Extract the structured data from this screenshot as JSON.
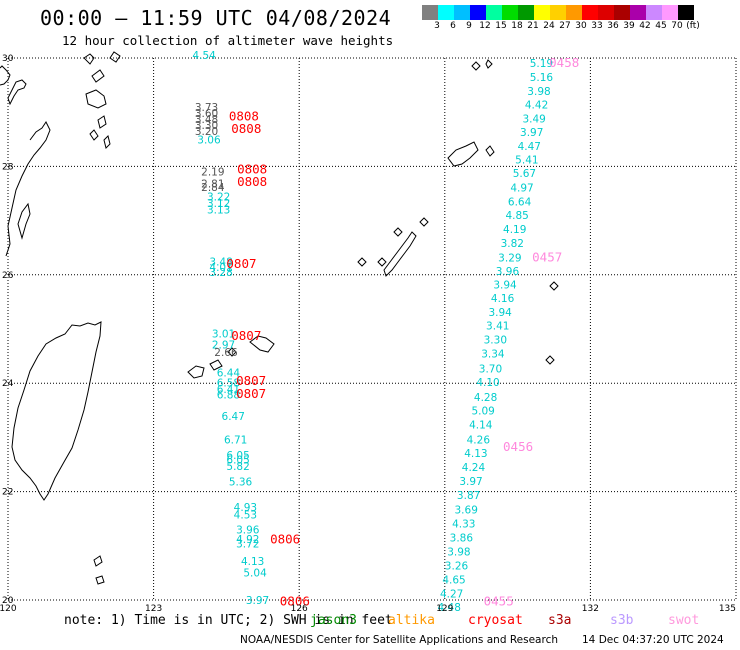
{
  "title": "00:00 — 11:59 UTC 04/08/2024",
  "subtitle": "12 hour collection of altimeter wave heights",
  "colorbar": {
    "colors": [
      "#808080",
      "#00ffff",
      "#00bfff",
      "#0000ff",
      "#00ffa0",
      "#00dd00",
      "#009900",
      "#ffff00",
      "#ffd000",
      "#ff9900",
      "#ff0000",
      "#dd0000",
      "#aa0000",
      "#aa00aa",
      "#cc88ff",
      "#ff99ff",
      "#000000"
    ],
    "labels": [
      "3",
      "6",
      "9",
      "12",
      "15",
      "18",
      "21",
      "24",
      "27",
      "30",
      "33",
      "36",
      "39",
      "42",
      "45",
      "70",
      "(ft)"
    ]
  },
  "map": {
    "lon_range": [
      120,
      135
    ],
    "lat_range": [
      20,
      30
    ],
    "lon_ticks": [
      "120",
      "123",
      "126",
      "129",
      "132",
      "135"
    ],
    "lat_ticks": [
      "30",
      "28",
      "26",
      "24",
      "22",
      "20"
    ],
    "grid": "dotted"
  },
  "track_times": [
    {
      "label": "0808",
      "color": "#ff0000",
      "lon": 124.55,
      "lat": 28.85
    },
    {
      "label": "0808",
      "color": "#ff0000",
      "lon": 124.6,
      "lat": 28.62
    },
    {
      "label": "0808",
      "color": "#ff0000",
      "lon": 124.72,
      "lat": 27.87
    },
    {
      "label": "0808",
      "color": "#ff0000",
      "lon": 124.72,
      "lat": 27.64
    },
    {
      "label": "0807",
      "color": "#ff0000",
      "lon": 124.5,
      "lat": 26.13
    },
    {
      "label": "0807",
      "color": "#ff0000",
      "lon": 124.6,
      "lat": 24.8
    },
    {
      "label": "0807",
      "color": "#ff0000",
      "lon": 124.7,
      "lat": 23.97
    },
    {
      "label": "0807",
      "color": "#ff0000",
      "lon": 124.7,
      "lat": 23.73
    },
    {
      "label": "0806",
      "color": "#ff0000",
      "lon": 125.4,
      "lat": 21.04
    },
    {
      "label": "0806",
      "color": "#ff0000",
      "lon": 125.6,
      "lat": 19.9
    },
    {
      "label": "0458",
      "color": "#ff88dd",
      "lon": 131.15,
      "lat": 29.83
    },
    {
      "label": "0457",
      "color": "#ff88dd",
      "lon": 130.8,
      "lat": 26.25
    },
    {
      "label": "0456",
      "color": "#ff88dd",
      "lon": 130.2,
      "lat": 22.75
    },
    {
      "label": "0455",
      "color": "#ff88dd",
      "lon": 129.8,
      "lat": 19.9
    }
  ],
  "wave_tracks": [
    {
      "color": "cyan",
      "points": [
        {
          "v": "4.54",
          "lon": 123.8,
          "lat": 29.98
        },
        {
          "v": "3.06",
          "lon": 123.9,
          "lat": 28.42
        }
      ]
    },
    {
      "color": "gray",
      "points": [
        {
          "v": "3.73",
          "lon": 123.85,
          "lat": 29.02
        },
        {
          "v": "3.60",
          "lon": 123.85,
          "lat": 28.91
        },
        {
          "v": "3.48",
          "lon": 123.85,
          "lat": 28.8
        },
        {
          "v": "3.30",
          "lon": 123.85,
          "lat": 28.69
        },
        {
          "v": "3.20",
          "lon": 123.85,
          "lat": 28.58
        }
      ]
    },
    {
      "color": "gray",
      "points": [
        {
          "v": "2.19",
          "lon": 123.98,
          "lat": 27.83
        },
        {
          "v": "2.81",
          "lon": 123.98,
          "lat": 27.61
        },
        {
          "v": "2.84",
          "lon": 123.98,
          "lat": 27.55
        }
      ]
    },
    {
      "color": "cyan",
      "points": [
        {
          "v": "3.22",
          "lon": 124.1,
          "lat": 27.37
        },
        {
          "v": "3.12",
          "lon": 124.1,
          "lat": 27.25
        },
        {
          "v": "3.13",
          "lon": 124.1,
          "lat": 27.13
        }
      ]
    },
    {
      "color": "cyan",
      "points": [
        {
          "v": "3.48",
          "lon": 124.15,
          "lat": 26.17
        },
        {
          "v": "4.01",
          "lon": 124.15,
          "lat": 26.07
        },
        {
          "v": "3.28",
          "lon": 124.15,
          "lat": 25.98
        }
      ]
    },
    {
      "color": "cyan",
      "points": [
        {
          "v": "3.01",
          "lon": 124.2,
          "lat": 24.84
        },
        {
          "v": "2.97",
          "lon": 124.2,
          "lat": 24.64
        }
      ]
    },
    {
      "color": "gray",
      "points": [
        {
          "v": "2.66",
          "lon": 124.25,
          "lat": 24.5
        }
      ]
    },
    {
      "color": "cyan",
      "points": [
        {
          "v": "6.44",
          "lon": 124.3,
          "lat": 24.12
        },
        {
          "v": "6.58",
          "lon": 124.3,
          "lat": 23.94
        },
        {
          "v": "6.41",
          "lon": 124.3,
          "lat": 23.82
        },
        {
          "v": "6.88",
          "lon": 124.3,
          "lat": 23.72
        },
        {
          "v": "6.47",
          "lon": 124.4,
          "lat": 23.32
        },
        {
          "v": "6.71",
          "lon": 124.45,
          "lat": 22.89
        },
        {
          "v": "6.05",
          "lon": 124.5,
          "lat": 22.6
        },
        {
          "v": "6.05",
          "lon": 124.5,
          "lat": 22.52
        },
        {
          "v": "5.82",
          "lon": 124.5,
          "lat": 22.4
        },
        {
          "v": "5.36",
          "lon": 124.55,
          "lat": 22.11
        },
        {
          "v": "4.93",
          "lon": 124.65,
          "lat": 21.64
        },
        {
          "v": "4.53",
          "lon": 124.65,
          "lat": 21.5
        },
        {
          "v": "3.96",
          "lon": 124.7,
          "lat": 21.23
        },
        {
          "v": "4.92",
          "lon": 124.7,
          "lat": 21.05
        },
        {
          "v": "3.72",
          "lon": 124.7,
          "lat": 20.97
        },
        {
          "v": "4.13",
          "lon": 124.8,
          "lat": 20.65
        },
        {
          "v": "5.04",
          "lon": 124.85,
          "lat": 20.43
        },
        {
          "v": "3.97",
          "lon": 124.9,
          "lat": 19.93
        }
      ]
    },
    {
      "color": "cyan",
      "points": [
        {
          "v": "5.19",
          "lon": 130.75,
          "lat": 29.83
        },
        {
          "v": "5.16",
          "lon": 130.75,
          "lat": 29.58
        },
        {
          "v": "3.98",
          "lon": 130.7,
          "lat": 29.32
        },
        {
          "v": "4.42",
          "lon": 130.65,
          "lat": 29.07
        },
        {
          "v": "3.49",
          "lon": 130.6,
          "lat": 28.81
        },
        {
          "v": "3.97",
          "lon": 130.55,
          "lat": 28.56
        },
        {
          "v": "4.47",
          "lon": 130.5,
          "lat": 28.3
        },
        {
          "v": "5.41",
          "lon": 130.45,
          "lat": 28.05
        },
        {
          "v": "5.67",
          "lon": 130.4,
          "lat": 27.8
        },
        {
          "v": "4.97",
          "lon": 130.35,
          "lat": 27.54
        },
        {
          "v": "6.64",
          "lon": 130.3,
          "lat": 27.28
        },
        {
          "v": "4.85",
          "lon": 130.25,
          "lat": 27.03
        },
        {
          "v": "4.19",
          "lon": 130.2,
          "lat": 26.77
        },
        {
          "v": "3.82",
          "lon": 130.15,
          "lat": 26.51
        },
        {
          "v": "3.29",
          "lon": 130.1,
          "lat": 26.25
        },
        {
          "v": "3.96",
          "lon": 130.05,
          "lat": 26.0
        },
        {
          "v": "3.94",
          "lon": 130.0,
          "lat": 25.75
        },
        {
          "v": "4.16",
          "lon": 129.95,
          "lat": 25.5
        },
        {
          "v": "3.94",
          "lon": 129.9,
          "lat": 25.24
        },
        {
          "v": "3.41",
          "lon": 129.85,
          "lat": 24.99
        },
        {
          "v": "3.30",
          "lon": 129.8,
          "lat": 24.73
        },
        {
          "v": "3.34",
          "lon": 129.75,
          "lat": 24.47
        },
        {
          "v": "3.70",
          "lon": 129.7,
          "lat": 24.2
        },
        {
          "v": "4.10",
          "lon": 129.65,
          "lat": 23.95
        },
        {
          "v": "4.28",
          "lon": 129.6,
          "lat": 23.67
        },
        {
          "v": "5.09",
          "lon": 129.55,
          "lat": 23.42
        },
        {
          "v": "4.14",
          "lon": 129.5,
          "lat": 23.16
        },
        {
          "v": "4.26",
          "lon": 129.45,
          "lat": 22.89
        },
        {
          "v": "4.13",
          "lon": 129.4,
          "lat": 22.64
        },
        {
          "v": "4.24",
          "lon": 129.35,
          "lat": 22.38
        },
        {
          "v": "3.97",
          "lon": 129.3,
          "lat": 22.12
        },
        {
          "v": "3.87",
          "lon": 129.25,
          "lat": 21.86
        },
        {
          "v": "3.69",
          "lon": 129.2,
          "lat": 21.6
        },
        {
          "v": "4.33",
          "lon": 129.15,
          "lat": 21.34
        },
        {
          "v": "3.86",
          "lon": 129.1,
          "lat": 21.08
        },
        {
          "v": "3.98",
          "lon": 129.05,
          "lat": 20.82
        },
        {
          "v": "3.26",
          "lon": 129.0,
          "lat": 20.56
        },
        {
          "v": "4.65",
          "lon": 128.95,
          "lat": 20.3
        },
        {
          "v": "4.27",
          "lon": 128.9,
          "lat": 20.05
        },
        {
          "v": "4.48",
          "lon": 128.85,
          "lat": 19.8
        }
      ]
    }
  ],
  "footer": {
    "note": "note: 1) Time is in UTC; 2) SWH is in feet",
    "legend": [
      {
        "name": "jason3",
        "color": "#008800"
      },
      {
        "name": "altika",
        "color": "#ff9900"
      },
      {
        "name": "cryosat",
        "color": "#ff0000"
      },
      {
        "name": "s3a",
        "color": "#aa0000"
      },
      {
        "name": "s3b",
        "color": "#bb99ff"
      },
      {
        "name": "swot",
        "color": "#ff99dd"
      }
    ],
    "credit": "NOAA/NESDIS Center for Satellite Applications and Research",
    "timestamp": "14 Dec 04:37:20 UTC 2024"
  }
}
